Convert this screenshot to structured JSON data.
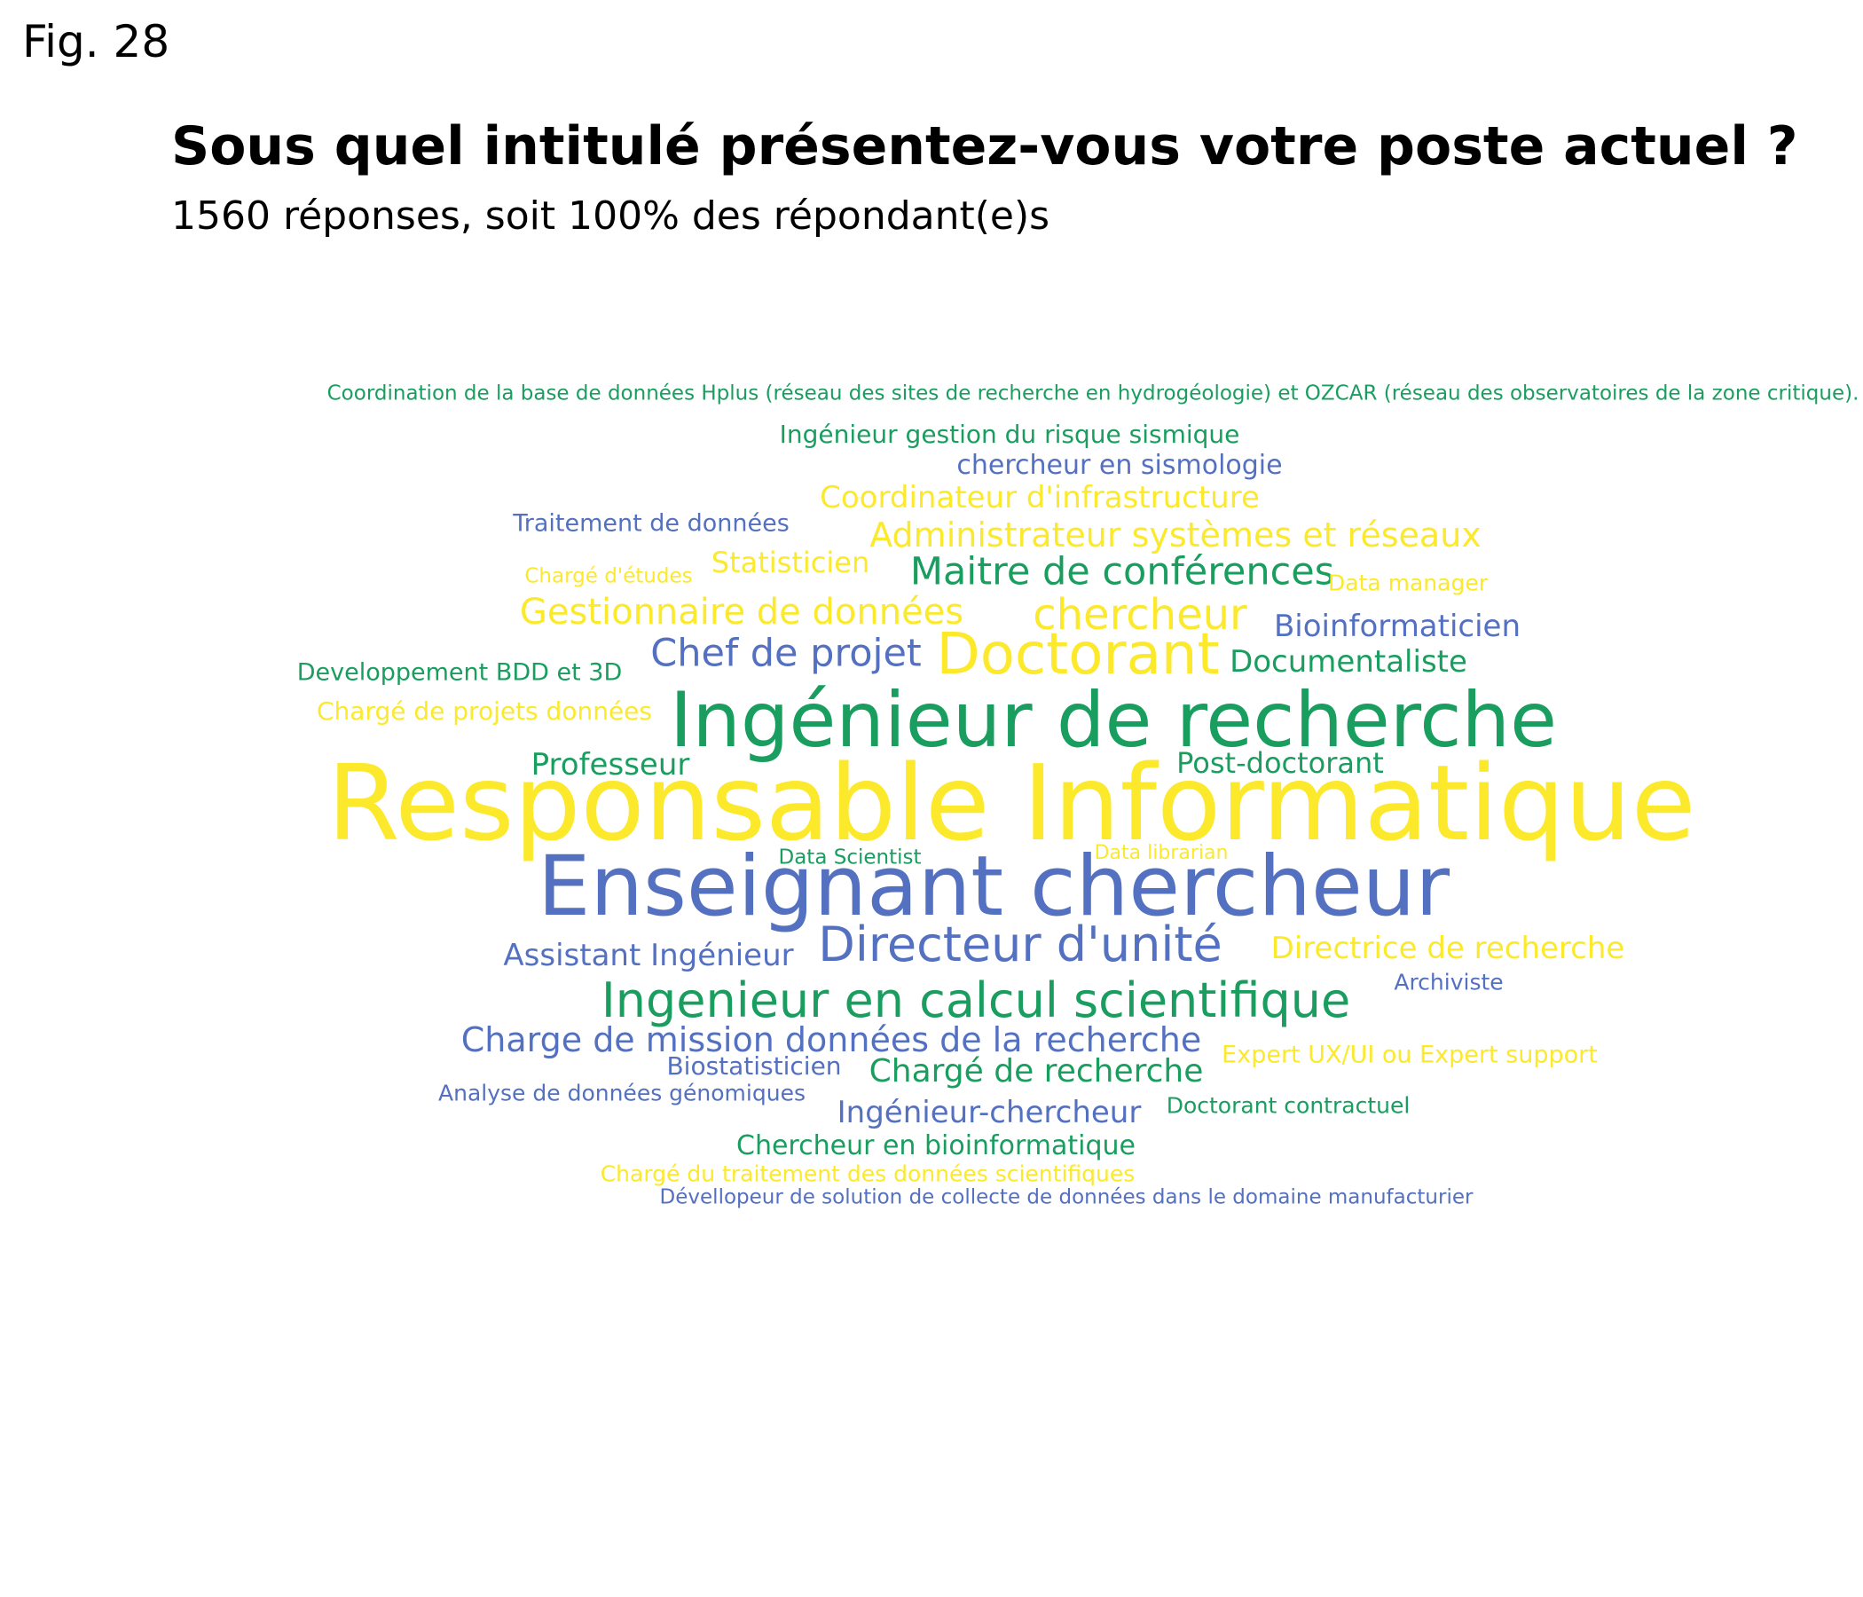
{
  "figure_label": "Fig. 28",
  "chart_data": {
    "type": "wordcloud",
    "title": "Sous quel intitulé présentez-vous votre poste actuel ?",
    "subtitle": "1560 réponses, soit 100% des répondant(e)s",
    "palette": [
      "#1a9e5f",
      "#5470c1",
      "#fce92b"
    ],
    "words": [
      {
        "text": "Responsable Informatique",
        "weight": 100,
        "color": "#fce92b"
      },
      {
        "text": "Enseignant chercheur",
        "weight": 86,
        "color": "#5470c1"
      },
      {
        "text": "Ingénieur de recherche",
        "weight": 82,
        "color": "#1a9e5f"
      },
      {
        "text": "Doctorant",
        "weight": 58,
        "color": "#fce92b"
      },
      {
        "text": "Directeur d'unité",
        "weight": 50,
        "color": "#5470c1"
      },
      {
        "text": "Ingenieur en calcul scientifique",
        "weight": 48,
        "color": "#1a9e5f"
      },
      {
        "text": "chercheur",
        "weight": 44,
        "color": "#fce92b"
      },
      {
        "text": "Chef de projet",
        "weight": 40,
        "color": "#5470c1"
      },
      {
        "text": "Maitre de conférences",
        "weight": 38,
        "color": "#1a9e5f"
      },
      {
        "text": "Gestionnaire de données",
        "weight": 38,
        "color": "#fce92b"
      },
      {
        "text": "Charge de mission données de la recherche",
        "weight": 36,
        "color": "#5470c1"
      },
      {
        "text": "Administrateur systèmes et réseaux",
        "weight": 36,
        "color": "#fce92b"
      },
      {
        "text": "Chargé de recherche",
        "weight": 35,
        "color": "#1a9e5f"
      },
      {
        "text": "Ingénieur-chercheur",
        "weight": 33,
        "color": "#5470c1"
      },
      {
        "text": "Coordinateur d'infrastructure",
        "weight": 33,
        "color": "#fce92b"
      },
      {
        "text": "Professeur",
        "weight": 32,
        "color": "#1a9e5f"
      },
      {
        "text": "Assistant Ingénieur",
        "weight": 32,
        "color": "#5470c1"
      },
      {
        "text": "Bioinformaticien",
        "weight": 32,
        "color": "#5470c1"
      },
      {
        "text": "Directrice de recherche",
        "weight": 32,
        "color": "#fce92b"
      },
      {
        "text": "Documentaliste",
        "weight": 32,
        "color": "#1a9e5f"
      },
      {
        "text": "Post-doctorant",
        "weight": 31,
        "color": "#1a9e5f"
      },
      {
        "text": "Statisticien",
        "weight": 30,
        "color": "#fce92b"
      },
      {
        "text": "chercheur en sismologie",
        "weight": 29,
        "color": "#5470c1"
      },
      {
        "text": "Chercheur en bioinformatique",
        "weight": 29,
        "color": "#1a9e5f"
      },
      {
        "text": "Ingénieur gestion du risque sismique",
        "weight": 28,
        "color": "#1a9e5f"
      },
      {
        "text": "Chargé de projets données",
        "weight": 28,
        "color": "#fce92b"
      },
      {
        "text": "Developpement BDD et 3D",
        "weight": 27,
        "color": "#1a9e5f"
      },
      {
        "text": "Biostatisticien",
        "weight": 27,
        "color": "#5470c1"
      },
      {
        "text": "Expert UX/UI ou Expert support",
        "weight": 27,
        "color": "#fce92b"
      },
      {
        "text": "Traitement de données",
        "weight": 27,
        "color": "#5470c1"
      },
      {
        "text": "Chargé du traitement des données scientifiques",
        "weight": 25,
        "color": "#fce92b"
      },
      {
        "text": "Doctorant contractuel",
        "weight": 25,
        "color": "#1a9e5f"
      },
      {
        "text": "Analyse de données génomiques",
        "weight": 25,
        "color": "#5470c1"
      },
      {
        "text": "Archiviste",
        "weight": 25,
        "color": "#5470c1"
      },
      {
        "text": "Data manager",
        "weight": 25,
        "color": "#fce92b"
      },
      {
        "text": "Coordination de la base de données Hplus (réseau des sites de recherche en hydrogéologie) et OZCAR (réseau des observatoires de la zone critique).",
        "weight": 24,
        "color": "#1a9e5f"
      },
      {
        "text": "Dévellopeur de solution de collecte de données dans le domaine manufacturier",
        "weight": 24,
        "color": "#5470c1"
      },
      {
        "text": "Chargé d'études",
        "weight": 23,
        "color": "#fce92b"
      },
      {
        "text": "Data Scientist",
        "weight": 23,
        "color": "#1a9e5f"
      },
      {
        "text": "Data librarian",
        "weight": 22,
        "color": "#fce92b"
      }
    ]
  }
}
